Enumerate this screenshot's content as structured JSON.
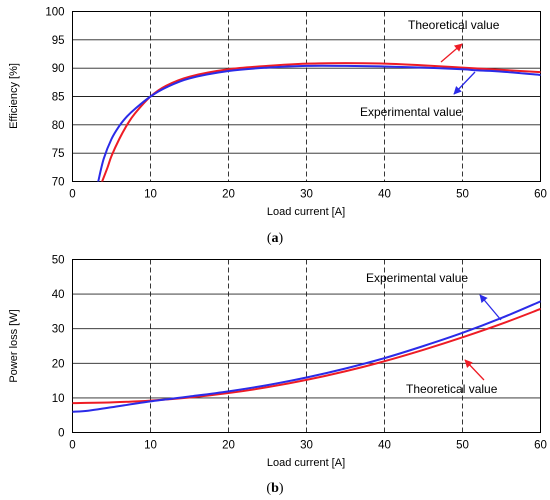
{
  "chart_data": [
    {
      "type": "line",
      "caption_open": "(",
      "caption_letter": "a",
      "caption_close": ")",
      "xlabel": "Load current [A]",
      "ylabel": "Efficiency [%]",
      "xlim": [
        0,
        60
      ],
      "ylim": [
        70,
        100
      ],
      "xticks": [
        "0",
        "10",
        "20",
        "30",
        "40",
        "50",
        "60"
      ],
      "yticks": [
        "70",
        "75",
        "80",
        "85",
        "90",
        "95",
        "100"
      ],
      "grid": true,
      "series": [
        {
          "name": "Theoretical value",
          "color": "#ee1c25",
          "x": [
            3.8,
            4.5,
            5,
            6,
            7,
            8,
            10,
            12,
            15,
            20,
            25,
            30,
            35,
            40,
            45,
            50,
            55,
            60
          ],
          "y": [
            70,
            72.5,
            74.5,
            77.5,
            80,
            82,
            85,
            86.9,
            88.5,
            89.8,
            90.4,
            90.8,
            90.9,
            90.8,
            90.5,
            90.1,
            89.7,
            89.3
          ]
        },
        {
          "name": "Experimental value",
          "color": "#2b2be8",
          "x": [
            3.3,
            4,
            5,
            6,
            7,
            8,
            10,
            12,
            15,
            20,
            25,
            30,
            35,
            40,
            45,
            50,
            52,
            55,
            60
          ],
          "y": [
            70,
            74,
            77.5,
            79.8,
            81.5,
            82.8,
            85,
            86.6,
            88.2,
            89.5,
            90.1,
            90.4,
            90.4,
            90.3,
            90.1,
            89.8,
            89.6,
            89.4,
            88.8
          ]
        }
      ],
      "annotations": [
        {
          "text": "Theoretical value",
          "series": 0
        },
        {
          "text": "Experimental value",
          "series": 1
        }
      ]
    },
    {
      "type": "line",
      "caption_open": "(",
      "caption_letter": "b",
      "caption_close": ")",
      "xlabel": "Load current [A]",
      "ylabel": "Power loss [W]",
      "xlim": [
        0,
        60
      ],
      "ylim": [
        0,
        50
      ],
      "xticks": [
        "0",
        "10",
        "20",
        "30",
        "40",
        "50",
        "60"
      ],
      "yticks": [
        "0",
        "10",
        "20",
        "30",
        "40",
        "50"
      ],
      "grid": true,
      "series": [
        {
          "name": "Theoretical value",
          "color": "#ee1c25",
          "x": [
            0,
            5,
            10,
            15,
            20,
            25,
            30,
            35,
            40,
            45,
            50,
            55,
            60
          ],
          "y": [
            8.5,
            8.7,
            9.2,
            10.1,
            11.4,
            13.1,
            15.2,
            17.7,
            20.6,
            23.9,
            27.5,
            31.4,
            35.7
          ]
        },
        {
          "name": "Experimental value",
          "color": "#2b2be8",
          "x": [
            0,
            2,
            5,
            10,
            15,
            20,
            25,
            30,
            35,
            40,
            45,
            50,
            55,
            60
          ],
          "y": [
            6.0,
            6.3,
            7.3,
            9.0,
            10.4,
            11.9,
            13.7,
            15.9,
            18.5,
            21.5,
            25.0,
            28.8,
            33.1,
            37.9
          ]
        }
      ],
      "annotations": [
        {
          "text": "Experimental value",
          "series": 1
        },
        {
          "text": "Theoretical value",
          "series": 0
        }
      ]
    }
  ]
}
